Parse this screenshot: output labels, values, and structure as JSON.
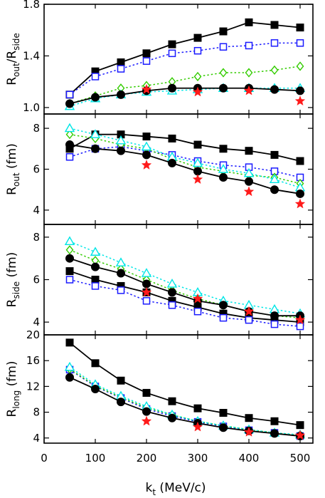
{
  "chart_data": {
    "type": "line",
    "xlabel": {
      "main": "k",
      "sub": "t",
      "rest": " (MeV/c)"
    },
    "x_ticks": [
      "0",
      "100",
      "200",
      "300",
      "400",
      "500"
    ],
    "xlim": [
      0,
      525
    ],
    "colors": {
      "black": "#000000",
      "blue": "#1a1aff",
      "green": "#33cc00",
      "cyan": "#00e6e6",
      "red": "#ff1a1a"
    },
    "panels": [
      {
        "id": "ratio",
        "ylabel": {
          "a": "R",
          "a_sub": "out",
          "slash": "/R",
          "b_sub": "side"
        },
        "ylim": [
          0.95,
          1.8
        ],
        "y_ticks": [
          {
            "v": 1.0,
            "t": "1.0"
          },
          {
            "v": 1.4,
            "t": "1.4"
          },
          {
            "v": 1.8,
            "t": "1.8"
          }
        ],
        "series": [
          {
            "marker": "square-filled",
            "color": "black",
            "line": "solid",
            "x": [
              50,
              100,
              150,
              200,
              250,
              300,
              350,
              400,
              450,
              500
            ],
            "y": [
              1.1,
              1.28,
              1.35,
              1.42,
              1.49,
              1.54,
              1.59,
              1.66,
              1.64,
              1.62
            ]
          },
          {
            "marker": "square-open",
            "color": "blue",
            "line": "dotted",
            "x": [
              50,
              100,
              150,
              200,
              250,
              300,
              350,
              400,
              450,
              500
            ],
            "y": [
              1.1,
              1.24,
              1.3,
              1.36,
              1.42,
              1.44,
              1.47,
              1.48,
              1.5,
              1.5
            ]
          },
          {
            "marker": "diamond-open",
            "color": "green",
            "line": "dotted",
            "x": [
              50,
              100,
              150,
              200,
              250,
              300,
              350,
              400,
              450,
              500
            ],
            "y": [
              1.03,
              1.09,
              1.15,
              1.17,
              1.2,
              1.24,
              1.27,
              1.27,
              1.29,
              1.32
            ]
          },
          {
            "marker": "triangle-open",
            "color": "cyan",
            "line": "dotted",
            "x": [
              50,
              100,
              150,
              200,
              250,
              300,
              350,
              400,
              450,
              500
            ],
            "y": [
              1.01,
              1.07,
              1.1,
              1.12,
              1.13,
              1.14,
              1.15,
              1.15,
              1.15,
              1.15
            ]
          },
          {
            "marker": "circle-filled",
            "color": "black",
            "line": "solid",
            "x": [
              50,
              100,
              150,
              200,
              250,
              300,
              350,
              400,
              450,
              500
            ],
            "y": [
              1.03,
              1.08,
              1.1,
              1.13,
              1.15,
              1.15,
              1.15,
              1.15,
              1.14,
              1.13
            ]
          },
          {
            "marker": "star",
            "color": "red",
            "line": "none",
            "x": [
              200,
              300,
              400,
              500
            ],
            "y": [
              1.14,
              1.12,
              1.13,
              1.05
            ]
          }
        ]
      },
      {
        "id": "rout",
        "ylabel": {
          "a": "R",
          "a_sub": "out",
          "rest": " (fm)"
        },
        "ylim": [
          3.3,
          8.7
        ],
        "y_ticks": [
          {
            "v": 4,
            "t": "4"
          },
          {
            "v": 6,
            "t": "6"
          },
          {
            "v": 8,
            "t": "8"
          }
        ],
        "series": [
          {
            "marker": "square-filled",
            "color": "black",
            "line": "solid",
            "x": [
              50,
              100,
              150,
              200,
              250,
              300,
              350,
              400,
              450,
              500
            ],
            "y": [
              7.0,
              7.7,
              7.7,
              7.6,
              7.5,
              7.2,
              7.0,
              6.9,
              6.7,
              6.4
            ]
          },
          {
            "marker": "square-open",
            "color": "blue",
            "line": "dotted",
            "x": [
              50,
              100,
              150,
              200,
              250,
              300,
              350,
              400,
              450,
              500
            ],
            "y": [
              6.6,
              7.0,
              7.1,
              6.9,
              6.7,
              6.4,
              6.2,
              6.1,
              5.9,
              5.6
            ]
          },
          {
            "marker": "diamond-open",
            "color": "green",
            "line": "dotted",
            "x": [
              50,
              100,
              150,
              200,
              250,
              300,
              350,
              400,
              450,
              500
            ],
            "y": [
              7.7,
              7.5,
              7.2,
              7.0,
              6.5,
              6.1,
              5.9,
              5.7,
              5.6,
              5.3
            ]
          },
          {
            "marker": "triangle-open",
            "color": "cyan",
            "line": "dotted",
            "x": [
              50,
              100,
              150,
              200,
              250,
              300,
              350,
              400,
              450,
              500
            ],
            "y": [
              8.0,
              7.7,
              7.4,
              7.1,
              6.6,
              6.3,
              6.0,
              5.8,
              5.5,
              5.1
            ]
          },
          {
            "marker": "circle-filled",
            "color": "black",
            "line": "solid",
            "x": [
              50,
              100,
              150,
              200,
              250,
              300,
              350,
              400,
              450,
              500
            ],
            "y": [
              7.2,
              7.0,
              6.9,
              6.7,
              6.3,
              5.9,
              5.6,
              5.4,
              5.0,
              4.8
            ]
          },
          {
            "marker": "star",
            "color": "red",
            "line": "none",
            "x": [
              200,
              300,
              400,
              500
            ],
            "y": [
              6.2,
              5.5,
              4.9,
              4.3
            ]
          }
        ]
      },
      {
        "id": "rside",
        "ylabel": {
          "a": "R",
          "a_sub": "side",
          "rest": " (fm)"
        },
        "ylim": [
          3.4,
          8.6
        ],
        "y_ticks": [
          {
            "v": 4,
            "t": "4"
          },
          {
            "v": 6,
            "t": "6"
          },
          {
            "v": 8,
            "t": "8"
          }
        ],
        "series": [
          {
            "marker": "square-filled",
            "color": "black",
            "line": "solid",
            "x": [
              50,
              100,
              150,
              200,
              250,
              300,
              350,
              400,
              450,
              500
            ],
            "y": [
              6.4,
              6.0,
              5.7,
              5.4,
              5.0,
              4.7,
              4.4,
              4.2,
              4.1,
              4.0
            ]
          },
          {
            "marker": "square-open",
            "color": "blue",
            "line": "dotted",
            "x": [
              50,
              100,
              150,
              200,
              250,
              300,
              350,
              400,
              450,
              500
            ],
            "y": [
              6.0,
              5.7,
              5.5,
              5.0,
              4.8,
              4.5,
              4.2,
              4.1,
              3.9,
              3.8
            ]
          },
          {
            "marker": "diamond-open",
            "color": "green",
            "line": "dotted",
            "x": [
              50,
              100,
              150,
              200,
              250,
              300,
              350,
              400,
              450,
              500
            ],
            "y": [
              7.4,
              6.9,
              6.5,
              6.0,
              5.5,
              5.1,
              4.8,
              4.5,
              4.3,
              4.2
            ]
          },
          {
            "marker": "triangle-open",
            "color": "cyan",
            "line": "dotted",
            "x": [
              50,
              100,
              150,
              200,
              250,
              300,
              350,
              400,
              450,
              500
            ],
            "y": [
              7.8,
              7.3,
              6.8,
              6.3,
              5.8,
              5.4,
              5.0,
              4.8,
              4.6,
              4.4
            ]
          },
          {
            "marker": "circle-filled",
            "color": "black",
            "line": "solid",
            "x": [
              50,
              100,
              150,
              200,
              250,
              300,
              350,
              400,
              450,
              500
            ],
            "y": [
              7.0,
              6.6,
              6.3,
              5.8,
              5.4,
              5.0,
              4.8,
              4.5,
              4.3,
              4.3
            ]
          },
          {
            "marker": "star",
            "color": "red",
            "line": "none",
            "x": [
              200,
              300,
              400,
              500
            ],
            "y": [
              5.4,
              5.1,
              4.5,
              4.1
            ]
          }
        ]
      },
      {
        "id": "rlong",
        "ylabel": {
          "a": "R",
          "a_sub": "long",
          "rest": " (fm)"
        },
        "ylim": [
          3.2,
          20
        ],
        "y_ticks": [
          {
            "v": 4,
            "t": "4"
          },
          {
            "v": 8,
            "t": "8"
          },
          {
            "v": 12,
            "t": "12"
          },
          {
            "v": 16,
            "t": "16"
          },
          {
            "v": 20,
            "t": "20"
          }
        ],
        "series": [
          {
            "marker": "square-filled",
            "color": "black",
            "line": "solid",
            "x": [
              50,
              100,
              150,
              200,
              250,
              300,
              350,
              400,
              450,
              500
            ],
            "y": [
              18.8,
              15.6,
              12.9,
              11.0,
              9.7,
              8.6,
              7.9,
              7.1,
              6.6,
              6.0
            ]
          },
          {
            "marker": "square-open",
            "color": "blue",
            "line": "dotted",
            "x": [
              50,
              100,
              150,
              200,
              250,
              300,
              350,
              400,
              450,
              500
            ],
            "y": [
              14.6,
              12.0,
              10.2,
              8.5,
              7.4,
              6.5,
              5.8,
              5.2,
              4.8,
              4.3
            ]
          },
          {
            "marker": "diamond-open",
            "color": "green",
            "line": "dotted",
            "x": [
              50,
              100,
              150,
              200,
              250,
              300,
              350,
              400,
              450,
              500
            ],
            "y": [
              14.7,
              12.1,
              10.3,
              8.7,
              7.6,
              6.6,
              5.9,
              5.3,
              4.8,
              4.4
            ]
          },
          {
            "marker": "triangle-open",
            "color": "cyan",
            "line": "dotted",
            "x": [
              50,
              100,
              150,
              200,
              250,
              300,
              350,
              400,
              450,
              500
            ],
            "y": [
              15.0,
              12.3,
              10.5,
              8.9,
              7.6,
              6.6,
              5.9,
              5.3,
              4.8,
              4.5
            ]
          },
          {
            "marker": "circle-filled",
            "color": "black",
            "line": "solid",
            "x": [
              50,
              100,
              150,
              200,
              250,
              300,
              350,
              400,
              450,
              500
            ],
            "y": [
              13.4,
              11.6,
              9.6,
              8.1,
              7.1,
              6.3,
              5.6,
              5.1,
              4.7,
              4.3
            ]
          },
          {
            "marker": "star",
            "color": "red",
            "line": "none",
            "x": [
              200,
              300,
              400,
              500
            ],
            "y": [
              6.6,
              5.7,
              4.9,
              4.4
            ]
          }
        ]
      }
    ]
  }
}
